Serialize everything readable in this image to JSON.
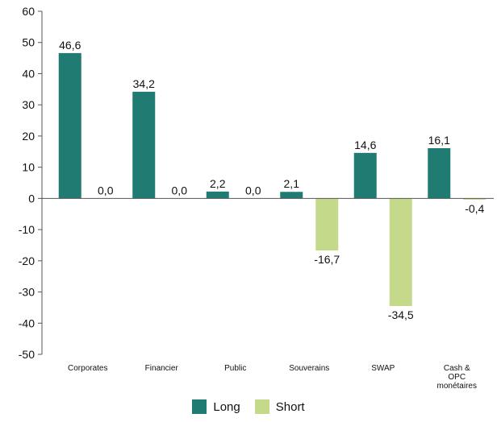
{
  "title_fragment": "",
  "colors": {
    "long": "#207b73",
    "short": "#c5d98a",
    "axis": "#555555",
    "text": "#111111"
  },
  "chart_data": {
    "type": "bar",
    "categories": [
      "Corporates",
      "Financier",
      "Public",
      "Souverains",
      "SWAP",
      "Cash & OPC monétaires"
    ],
    "category_lines": [
      [
        "Corporates"
      ],
      [
        "Financier"
      ],
      [
        "Public"
      ],
      [
        "Souverains"
      ],
      [
        "SWAP"
      ],
      [
        "Cash &",
        "OPC",
        "monétaires"
      ]
    ],
    "series": [
      {
        "name": "Long",
        "values": [
          46.6,
          34.2,
          2.2,
          2.1,
          14.6,
          16.1
        ],
        "labels": [
          "46,6",
          "34,2",
          "2,2",
          "2,1",
          "14,6",
          "16,1"
        ]
      },
      {
        "name": "Short",
        "values": [
          0.0,
          0.0,
          0.0,
          -16.7,
          -34.5,
          -0.4
        ],
        "labels": [
          "0,0",
          "0,0",
          "0,0",
          "-16,7",
          "-34,5",
          "-0,4"
        ]
      }
    ],
    "ylim": [
      -50,
      60
    ],
    "yticks": [
      -50,
      -40,
      -30,
      -20,
      -10,
      0,
      10,
      20,
      30,
      40,
      50,
      60
    ],
    "xlabel": "",
    "ylabel": "",
    "legend_position": "bottom",
    "grid": false
  }
}
